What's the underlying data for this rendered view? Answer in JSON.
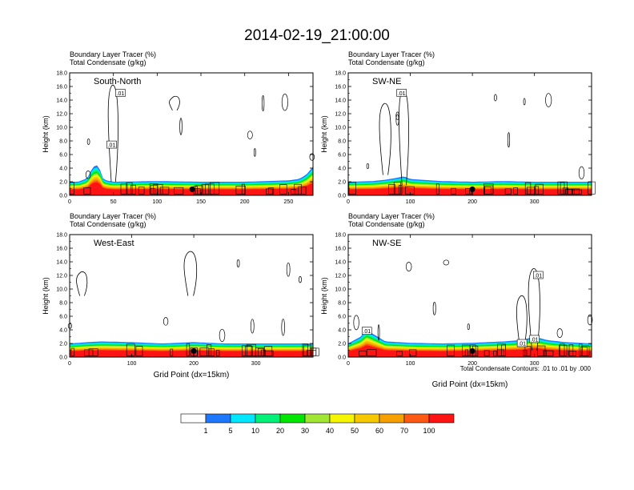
{
  "title": "2014-02-19_21:00:00",
  "panel_subtitle_1": "Boundary Layer Tracer   (%)",
  "panel_subtitle_2": "Total Condensate   (g/kg)",
  "y_axis_label": "Height (km)",
  "x_axis_label": "Grid Point (dx=15km)",
  "contour_note": "Total Condensate Contours: .01 to .01 by .000",
  "contour_label": ".01",
  "y_ticks": [
    "0.0",
    "2.0",
    "4.0",
    "6.0",
    "8.0",
    "10.0",
    "12.0",
    "14.0",
    "16.0",
    "18.0"
  ],
  "colors": {
    "fill": [
      "#ffffff",
      "#1e78ff",
      "#00e6ff",
      "#00f078",
      "#00e600",
      "#a0e632",
      "#f5f500",
      "#f5c800",
      "#f5a000",
      "#ff5a14",
      "#ff1414"
    ],
    "black": "#000000"
  },
  "colorbar": {
    "labels": [
      "1",
      "5",
      "10",
      "20",
      "30",
      "40",
      "50",
      "60",
      "70",
      "100"
    ]
  },
  "chart_data": [
    {
      "type": "area",
      "name": "South-North",
      "xlim": [
        0,
        278
      ],
      "ylim": [
        0,
        18
      ],
      "x_ticks": [
        "0",
        "50",
        "100",
        "150",
        "200",
        "250"
      ],
      "x_tick_values": [
        0,
        50,
        100,
        150,
        200,
        250
      ],
      "tracer_top_km": {
        "x": [
          0,
          10,
          20,
          25,
          30,
          34,
          38,
          42,
          50,
          100,
          150,
          200,
          250,
          262,
          270,
          278
        ],
        "y": [
          2.0,
          2.0,
          2.5,
          3.8,
          4.6,
          4.0,
          2.5,
          2.2,
          2.0,
          2.1,
          2.0,
          2.0,
          2.2,
          2.4,
          3.0,
          4.2
        ]
      },
      "cloud_columns": [
        {
          "x": 50,
          "bottom_km": 2,
          "top_km": 16.2
        },
        {
          "x": 120,
          "bottom_km": 12.5,
          "top_km": 14.5
        }
      ],
      "contour_labels": [
        {
          "x": 58,
          "y_km": 15
        },
        {
          "x": 48,
          "y_km": 7.4
        }
      ],
      "marker": {
        "x": 140,
        "y_km": 0.9
      }
    },
    {
      "type": "area",
      "name": "SW-NE",
      "xlim": [
        0,
        392
      ],
      "ylim": [
        0,
        18
      ],
      "x_ticks": [
        "0",
        "100",
        "200",
        "300"
      ],
      "x_tick_values": [
        0,
        100,
        200,
        300
      ],
      "tracer_top_km": {
        "x": [
          0,
          40,
          60,
          80,
          90,
          100,
          150,
          200,
          250,
          300,
          350,
          392
        ],
        "y": [
          2.0,
          2.1,
          2.3,
          2.6,
          2.8,
          2.4,
          2.1,
          2.0,
          2.1,
          2.0,
          2.0,
          2.0
        ]
      },
      "cloud_columns": [
        {
          "x": 90,
          "bottom_km": 1.5,
          "top_km": 15.5
        },
        {
          "x": 60,
          "bottom_km": 3,
          "top_km": 13.5
        }
      ],
      "contour_labels": [
        {
          "x": 86,
          "y_km": 15
        }
      ],
      "marker": {
        "x": 200,
        "y_km": 0.9
      }
    },
    {
      "type": "area",
      "name": "West-East",
      "xlim": [
        0,
        392
      ],
      "ylim": [
        0,
        18
      ],
      "x_ticks": [
        "0",
        "100",
        "200",
        "300"
      ],
      "x_tick_values": [
        0,
        100,
        200,
        300
      ],
      "tracer_top_km": {
        "x": [
          0,
          30,
          50,
          100,
          150,
          200,
          250,
          300,
          350,
          392
        ],
        "y": [
          2.0,
          2.2,
          2.3,
          2.2,
          2.0,
          2.2,
          2.0,
          2.0,
          2.0,
          2.0
        ]
      },
      "cloud_columns": [
        {
          "x": 195,
          "bottom_km": 9,
          "top_km": 15.5
        },
        {
          "x": 20,
          "bottom_km": 9,
          "top_km": 12.5
        }
      ],
      "contour_labels": [],
      "marker": {
        "x": 200,
        "y_km": 0.9
      }
    },
    {
      "type": "area",
      "name": "NW-SE",
      "xlim": [
        0,
        392
      ],
      "ylim": [
        0,
        18
      ],
      "x_ticks": [
        "0",
        "100",
        "200",
        "300"
      ],
      "x_tick_values": [
        0,
        100,
        200,
        300
      ],
      "tracer_top_km": {
        "x": [
          0,
          20,
          30,
          40,
          60,
          100,
          150,
          200,
          250,
          280,
          300,
          320,
          350,
          392
        ],
        "y": [
          2.0,
          3.0,
          4.0,
          3.4,
          2.3,
          2.1,
          2.0,
          2.1,
          2.3,
          2.5,
          3.0,
          2.5,
          2.2,
          2.0
        ]
      },
      "cloud_columns": [
        {
          "x": 300,
          "bottom_km": 1,
          "top_km": 13
        },
        {
          "x": 280,
          "bottom_km": 1.5,
          "top_km": 9
        }
      ],
      "contour_labels": [
        {
          "x": 30,
          "y_km": 3.8
        },
        {
          "x": 280,
          "y_km": 2
        },
        {
          "x": 300,
          "y_km": 2.6
        },
        {
          "x": 306,
          "y_km": 12
        }
      ],
      "marker": {
        "x": 200,
        "y_km": 0.9
      }
    }
  ]
}
